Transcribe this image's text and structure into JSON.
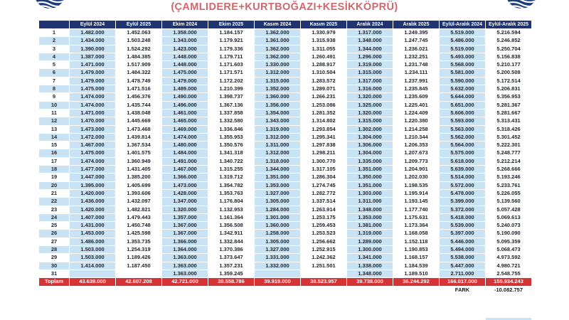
{
  "title": "(ÇAMLIDERE+KURTBOĞAZI+KESİKKÖPRÜ)",
  "logos": {
    "left": "water-authority-logo",
    "right": "water-authority-logo"
  },
  "colors": {
    "header_bg": "#1f3470",
    "cell_blue": "#c9e3f4",
    "total_red": "#d63336",
    "title_color": "#cf686c"
  },
  "table": {
    "day_header": "",
    "columns": [
      "Eylül 2024",
      "Eylül 2025",
      "Ekim 2024",
      "Ekim 2025",
      "Kasım 2024",
      "Kasım 2025",
      "Aralık 2024",
      "Aralık 2025",
      "Eylül-Aralık 2024",
      "Eylül-Aralık 2025"
    ],
    "rows": [
      [
        "1",
        "1.482.000",
        "1.452.063",
        "1.358.000",
        "1.184.157",
        "1.362.000",
        "1.330.979",
        "1.317.000",
        "1.249.395",
        "5.519.000",
        "5.216.594"
      ],
      [
        "2",
        "1.434.000",
        "1.503.248",
        "1.343.000",
        "1.179.921",
        "1.361.000",
        "1.315.938",
        "1.348.000",
        "1.247.745",
        "5.486.000",
        "5.246.852"
      ],
      [
        "3",
        "1.390.000",
        "1.524.292",
        "1.423.000",
        "1.179.336",
        "1.362.000",
        "1.311.055",
        "1.344.000",
        "1.236.021",
        "5.519.000",
        "5.250.704"
      ],
      [
        "4",
        "1.387.000",
        "1.484.385",
        "1.448.000",
        "1.179.711",
        "1.362.000",
        "1.260.491",
        "1.296.000",
        "1.232.251",
        "5.493.000",
        "5.156.838"
      ],
      [
        "5",
        "1.471.000",
        "1.517.909",
        "1.448.000",
        "1.171.603",
        "1.330.000",
        "1.288.917",
        "1.319.000",
        "1.231.748",
        "5.568.000",
        "5.210.177"
      ],
      [
        "6",
        "1.479.000",
        "1.484.322",
        "1.475.000",
        "1.171.571",
        "1.312.000",
        "1.310.504",
        "1.315.000",
        "1.234.111",
        "5.581.000",
        "5.200.508"
      ],
      [
        "7",
        "1.479.000",
        "1.478.749",
        "1.479.000",
        "1.172.202",
        "1.315.000",
        "1.283.572",
        "1.317.000",
        "1.237.991",
        "5.590.000",
        "5.172.514"
      ],
      [
        "8",
        "1.475.000",
        "1.471.516",
        "1.489.000",
        "1.210.399",
        "1.352.000",
        "1.289.071",
        "1.316.000",
        "1.235.845",
        "5.632.000",
        "5.206.831"
      ],
      [
        "9",
        "1.474.000",
        "1.456.376",
        "1.490.000",
        "1.398.737",
        "1.360.000",
        "1.266.231",
        "1.320.000",
        "1.235.609",
        "5.644.000",
        "5.356.953"
      ],
      [
        "10",
        "1.474.000",
        "1.435.744",
        "1.496.000",
        "1.367.136",
        "1.356.000",
        "1.253.086",
        "1.325.000",
        "1.225.401",
        "5.651.000",
        "5.281.367"
      ],
      [
        "11",
        "1.471.000",
        "1.438.048",
        "1.461.000",
        "1.337.858",
        "1.354.000",
        "1.281.352",
        "1.320.000",
        "1.224.409",
        "5.606.000",
        "5.281.667"
      ],
      [
        "12",
        "1.470.000",
        "1.445.669",
        "1.465.000",
        "1.332.580",
        "1.343.000",
        "1.314.802",
        "1.315.000",
        "1.220.380",
        "5.593.000",
        "5.313.431"
      ],
      [
        "13",
        "1.473.000",
        "1.473.468",
        "1.469.000",
        "1.336.846",
        "1.319.000",
        "1.293.854",
        "1.302.000",
        "1.214.258",
        "5.563.000",
        "5.318.426"
      ],
      [
        "14",
        "1.472.000",
        "1.439.814",
        "1.474.000",
        "1.355.953",
        "1.312.000",
        "1.295.341",
        "1.304.000",
        "1.210.344",
        "5.562.000",
        "5.301.452"
      ],
      [
        "15",
        "1.467.000",
        "1.367.534",
        "1.480.000",
        "1.350.576",
        "1.311.000",
        "1.297.838",
        "1.306.000",
        "1.206.353",
        "5.564.000",
        "5.222.301"
      ],
      [
        "16",
        "1.475.000",
        "1.401.575",
        "1.484.000",
        "1.341.318",
        "1.312.000",
        "1.298.211",
        "1.304.000",
        "1.207.673",
        "5.575.000",
        "5.248.777"
      ],
      [
        "17",
        "1.474.000",
        "1.360.949",
        "1.491.000",
        "1.340.722",
        "1.318.000",
        "1.300.770",
        "1.335.000",
        "1.209.773",
        "5.618.000",
        "5.212.214"
      ],
      [
        "18",
        "1.477.000",
        "1.431.405",
        "1.467.000",
        "1.315.255",
        "1.344.000",
        "1.317.105",
        "1.351.000",
        "1.204.901",
        "5.639.000",
        "5.268.666"
      ],
      [
        "19",
        "1.447.000",
        "1.385.200",
        "1.366.000",
        "1.319.712",
        "1.351.000",
        "1.286.304",
        "1.350.000",
        "1.202.030",
        "5.514.000",
        "5.193.246"
      ],
      [
        "20",
        "1.395.000",
        "1.405.699",
        "1.473.000",
        "1.354.782",
        "1.353.000",
        "1.274.745",
        "1.351.000",
        "1.198.535",
        "5.572.000",
        "5.233.761"
      ],
      [
        "21",
        "1.420.000",
        "1.393.606",
        "1.428.000",
        "1.353.763",
        "1.327.000",
        "1.282.772",
        "1.303.000",
        "1.195.914",
        "5.478.000",
        "5.226.055"
      ],
      [
        "22",
        "1.436.000",
        "1.432.097",
        "1.347.000",
        "1.176.804",
        "1.305.000",
        "1.337.514",
        "1.311.000",
        "1.193.145",
        "5.399.000",
        "5.139.560"
      ],
      [
        "23",
        "1.420.000",
        "1.482.821",
        "1.320.000",
        "1.132.953",
        "1.284.000",
        "1.263.914",
        "1.348.000",
        "1.177.740",
        "5.372.000",
        "5.057.428"
      ],
      [
        "24",
        "1.407.000",
        "1.479.443",
        "1.357.000",
        "1.161.364",
        "1.301.000",
        "1.253.175",
        "1.353.000",
        "1.175.631",
        "5.418.000",
        "5.069.613"
      ],
      [
        "25",
        "1.431.000",
        "1.450.748",
        "1.367.000",
        "1.356.508",
        "1.360.000",
        "1.259.453",
        "1.381.000",
        "1.173.364",
        "5.539.000",
        "5.240.073"
      ],
      [
        "26",
        "1.453.000",
        "1.425.598",
        "1.367.000",
        "1.342.911",
        "1.258.000",
        "1.253.523",
        "1.319.000",
        "1.168.058",
        "5.397.000",
        "5.190.090"
      ],
      [
        "27",
        "1.486.000",
        "1.353.735",
        "1.366.000",
        "1.332.844",
        "1.305.000",
        "1.256.662",
        "1.289.000",
        "1.152.118",
        "5.446.000",
        "5.095.359"
      ],
      [
        "28",
        "1.503.000",
        "1.254.319",
        "1.364.000",
        "1.370.386",
        "1.327.000",
        "1.252.915",
        "1.300.000",
        "1.190.853",
        "5.494.000",
        "5.068.473"
      ],
      [
        "29",
        "1.503.000",
        "1.189.426",
        "1.363.000",
        "1.373.647",
        "1.331.000",
        "1.242.362",
        "1.341.000",
        "1.168.157",
        "5.538.000",
        "4.973.592"
      ],
      [
        "30",
        "1.414.000",
        "1.187.450",
        "1.363.000",
        "1.357.231",
        "1.332.000",
        "1.251.501",
        "1.338.000",
        "1.184.539",
        "5.447.000",
        "4.980.721"
      ],
      [
        "31",
        "",
        "",
        "1.363.000",
        "1.359.245",
        "",
        "",
        "1.348.000",
        "1.189.510",
        "2.711.000",
        "2.548.755"
      ]
    ],
    "total": {
      "label": "Toplam",
      "values": [
        "43.639.000",
        "42.607.208",
        "42.721.000",
        "38.558.786",
        "39.919.000",
        "38.523.957",
        "39.738.000",
        "36.244.292",
        "166.017.000",
        "155.934.243"
      ]
    },
    "fark": {
      "label": "FARK",
      "value": "-10.082.757"
    }
  }
}
